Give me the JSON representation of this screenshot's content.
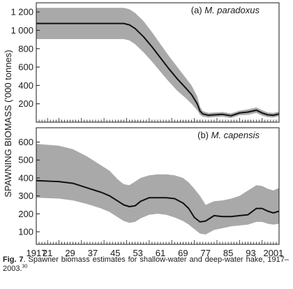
{
  "chart_data": [
    {
      "type": "area",
      "panel_label": "(a)",
      "title": "M. paradoxus",
      "ylabel": "SPAWNING BIOMASS ('000 tonnes)",
      "ylim": [
        0,
        1300
      ],
      "y_ticks": [
        200,
        400,
        600,
        800,
        1000,
        1200
      ],
      "y_tick_labels": [
        "200",
        "400",
        "600",
        "800",
        "1 000",
        "1 200"
      ],
      "xlim": [
        1917,
        2003
      ],
      "series": [
        {
          "type": "line",
          "x": [
            1917,
            1930,
            1940,
            1948,
            1950,
            1952,
            1955,
            1958,
            1961,
            1964,
            1967,
            1970,
            1972,
            1974,
            1975,
            1976,
            1978,
            1980,
            1983,
            1986,
            1989,
            1992,
            1995,
            1997,
            1999,
            2001,
            2003
          ],
          "values": [
            1075,
            1075,
            1075,
            1075,
            1060,
            1020,
            930,
            820,
            700,
            580,
            470,
            370,
            300,
            200,
            120,
            90,
            75,
            80,
            85,
            70,
            100,
            110,
            130,
            100,
            80,
            75,
            90
          ]
        },
        {
          "type": "band",
          "x": [
            1917,
            1930,
            1940,
            1948,
            1950,
            1952,
            1955,
            1958,
            1961,
            1964,
            1967,
            1970,
            1972,
            1974,
            1975,
            1976,
            1978,
            1980,
            1983,
            1986,
            1989,
            1992,
            1995,
            1997,
            1999,
            2001,
            2003
          ],
          "upper": [
            1245,
            1245,
            1245,
            1245,
            1230,
            1190,
            1100,
            980,
            850,
            720,
            600,
            480,
            400,
            280,
            170,
            120,
            100,
            105,
            110,
            95,
            125,
            140,
            160,
            130,
            105,
            100,
            115
          ],
          "lower": [
            905,
            905,
            905,
            905,
            890,
            850,
            760,
            660,
            550,
            440,
            340,
            260,
            200,
            130,
            80,
            60,
            50,
            55,
            60,
            45,
            75,
            80,
            100,
            70,
            55,
            50,
            65
          ]
        }
      ]
    },
    {
      "type": "area",
      "panel_label": "(b)",
      "title": "M. capensis",
      "ylim": [
        30,
        680
      ],
      "y_ticks": [
        100,
        200,
        300,
        400,
        500,
        600
      ],
      "y_tick_labels": [
        "100",
        "200",
        "300",
        "400",
        "500",
        "600"
      ],
      "xlim": [
        1917,
        2003
      ],
      "x_ticks": [
        1917,
        1921,
        1929,
        1937,
        1945,
        1953,
        1961,
        1969,
        1977,
        1985,
        1993,
        2001
      ],
      "x_tick_labels": [
        "1917",
        "21",
        "29",
        "37",
        "45",
        "53",
        "61",
        "69",
        "77",
        "85",
        "93",
        "2001"
      ],
      "series": [
        {
          "type": "line",
          "x": [
            1917,
            1925,
            1930,
            1935,
            1940,
            1943,
            1946,
            1948,
            1950,
            1952,
            1954,
            1957,
            1960,
            1963,
            1966,
            1969,
            1971,
            1973,
            1975,
            1977,
            1980,
            1983,
            1986,
            1989,
            1992,
            1995,
            1997,
            1999,
            2001,
            2003
          ],
          "values": [
            385,
            380,
            370,
            345,
            320,
            300,
            270,
            250,
            240,
            245,
            270,
            290,
            290,
            290,
            285,
            260,
            230,
            180,
            155,
            160,
            190,
            185,
            185,
            190,
            195,
            230,
            230,
            215,
            205,
            215
          ]
        },
        {
          "type": "band",
          "x": [
            1917,
            1925,
            1930,
            1935,
            1940,
            1943,
            1946,
            1948,
            1950,
            1952,
            1954,
            1957,
            1960,
            1963,
            1966,
            1969,
            1971,
            1973,
            1975,
            1977,
            1980,
            1983,
            1986,
            1989,
            1992,
            1995,
            1997,
            1999,
            2001,
            2003
          ],
          "upper": [
            590,
            580,
            560,
            520,
            470,
            440,
            390,
            365,
            360,
            380,
            400,
            415,
            420,
            420,
            415,
            400,
            375,
            340,
            300,
            250,
            270,
            275,
            285,
            300,
            330,
            360,
            355,
            340,
            330,
            345
          ],
          "lower": [
            290,
            285,
            275,
            255,
            230,
            210,
            180,
            160,
            150,
            155,
            175,
            195,
            200,
            195,
            180,
            160,
            140,
            115,
            90,
            85,
            110,
            120,
            130,
            135,
            140,
            155,
            155,
            145,
            140,
            145
          ]
        }
      ]
    }
  ],
  "caption": {
    "label": "Fig. 7",
    "text": ". Spawner biomass estimates for shallow-water and deep-water hake, 1917–2003.",
    "ref": "30"
  },
  "colors": {
    "band": "#a9a9a9",
    "line": "#111111",
    "axis": "#1a1a1a"
  }
}
